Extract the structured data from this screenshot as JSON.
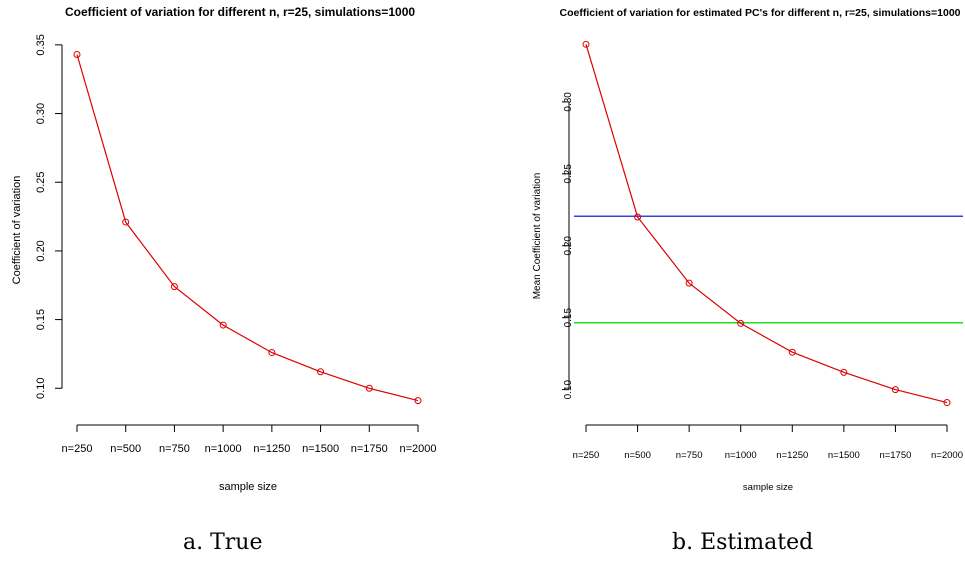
{
  "chart_data": [
    {
      "type": "line",
      "title": "Coefficient of variation for different n, r=25, simulations=1000",
      "xlabel": "sample size",
      "ylabel": "Coefficient of variation",
      "categories": [
        "n=250",
        "n=500",
        "n=750",
        "n=1000",
        "n=1250",
        "n=1500",
        "n=1750",
        "n=2000"
      ],
      "yticks": [
        "0.10",
        "0.15",
        "0.20",
        "0.25",
        "0.30",
        "0.35"
      ],
      "ylim": [
        0.09,
        0.355
      ],
      "series": [
        {
          "values": [
            0.343,
            0.221,
            0.174,
            0.146,
            0.126,
            0.112,
            0.1,
            0.091
          ],
          "color": "#e00000",
          "marker": "open-circle"
        }
      ],
      "hlines": [],
      "grid": false,
      "legend": "none"
    },
    {
      "type": "line",
      "title": "Coefficient of variation for estimated PC's for different n, r=25, simulations=1000",
      "xlabel": "sample size",
      "ylabel": "Mean Coefficient of variation",
      "categories": [
        "n=250",
        "n=500",
        "n=750",
        "n=1000",
        "n=1250",
        "n=1500",
        "n=1750",
        "n=2000"
      ],
      "yticks": [
        "0.10",
        "0.15",
        "0.20",
        "0.25",
        "0.30"
      ],
      "ylim": [
        0.09,
        0.343
      ],
      "series": [
        {
          "values": [
            0.34,
            0.22,
            0.174,
            0.146,
            0.126,
            0.112,
            0.1,
            0.091
          ],
          "color": "#e00000",
          "marker": "open-circle"
        }
      ],
      "hlines": [
        {
          "value": 0.2205,
          "color": "#3344dd"
        },
        {
          "value": 0.1465,
          "color": "#22dd22"
        }
      ],
      "grid": false,
      "legend": "none"
    }
  ],
  "captions": {
    "a": "a.  True",
    "b": "b.  Estimated"
  }
}
